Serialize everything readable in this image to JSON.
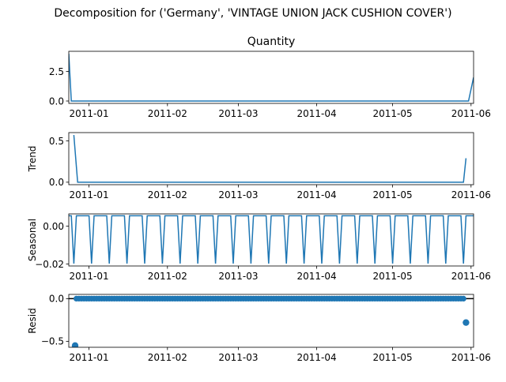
{
  "suptitle": "Decomposition for ('Germany', 'VINTAGE UNION JACK CUSHION COVER')",
  "x_ticks": [
    "2011-01",
    "2011-02",
    "2011-03",
    "2011-04",
    "2011-05",
    "2011-06"
  ],
  "x_tick_days": [
    8,
    39,
    67,
    98,
    128,
    159
  ],
  "chart_data": [
    {
      "type": "line",
      "title": "Quantity",
      "ylabel": "",
      "x_range_days": [
        0,
        160
      ],
      "ylim": [
        -0.2,
        4.2
      ],
      "y_ticks": [
        0.0,
        2.5
      ],
      "y_tick_labels": [
        "0.0",
        "2.5"
      ],
      "series": [
        {
          "x": [
            0,
            1,
            158,
            160
          ],
          "y": [
            4.0,
            0.0,
            0.0,
            2.0
          ]
        }
      ]
    },
    {
      "type": "line",
      "title": "",
      "ylabel": "Trend",
      "x_range_days": [
        0,
        160
      ],
      "ylim": [
        -0.03,
        0.6
      ],
      "y_ticks": [
        0.0,
        0.5
      ],
      "y_tick_labels": [
        "0.0",
        "0.5"
      ],
      "series": [
        {
          "x": [
            2,
            3.5,
            156,
            157
          ],
          "y": [
            0.57,
            0.0,
            0.0,
            0.29
          ]
        }
      ]
    },
    {
      "type": "line",
      "title": "",
      "ylabel": "Seasonal",
      "x_range_days": [
        0,
        160
      ],
      "ylim": [
        -0.021,
        0.0065
      ],
      "y_ticks": [
        0.0,
        -0.02
      ],
      "y_tick_labels": [
        "0.00",
        "−0.02"
      ],
      "pattern": {
        "period_days": 7,
        "offset_days": 2,
        "high": 0.0055,
        "low": -0.0197
      },
      "series": []
    },
    {
      "type": "scatter",
      "title": "",
      "ylabel": "Resid",
      "x_range_days": [
        0,
        160
      ],
      "ylim": [
        -0.57,
        0.05
      ],
      "y_ticks": [
        0.0,
        -0.5
      ],
      "y_tick_labels": [
        "0.0",
        "−0.5"
      ],
      "zero_line": true,
      "series": [
        {
          "x_start": 3,
          "x_end": 156,
          "y_default": 0.0,
          "outliers": [
            {
              "x": 2.5,
              "y": -0.55
            },
            {
              "x": 157,
              "y": -0.28
            }
          ]
        }
      ]
    }
  ]
}
